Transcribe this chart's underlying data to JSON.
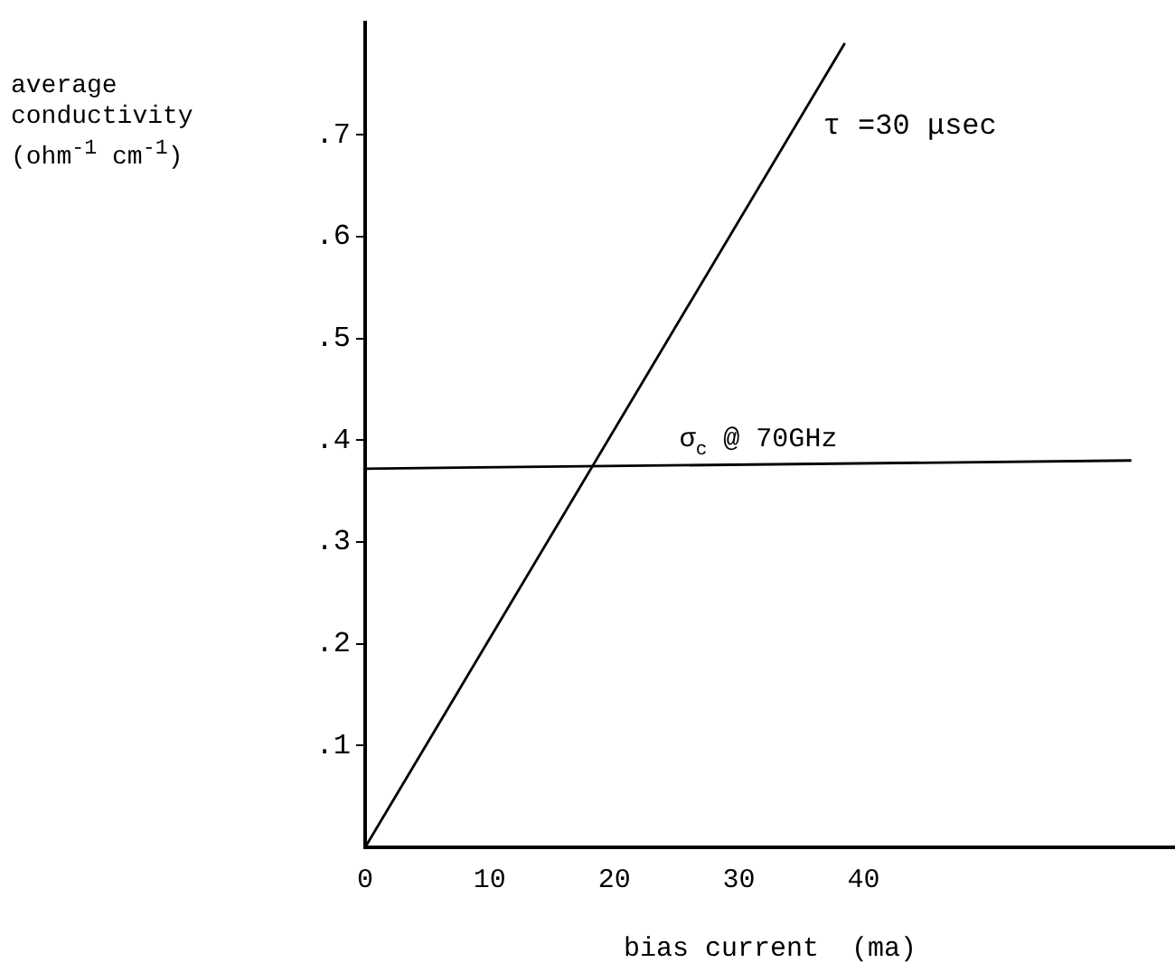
{
  "chart_data": {
    "type": "line",
    "xlabel": "bias current  (ma)",
    "ylabel": "average conductivity (ohm$^{-1}$ cm$^{-1}$)",
    "xlim": [
      0,
      65
    ],
    "xticks": [
      0,
      10,
      20,
      30,
      40
    ],
    "ylim": [
      0,
      0.81
    ],
    "yticks": [
      {
        "value": 0.1,
        "label": ".1"
      },
      {
        "value": 0.2,
        "label": ".2"
      },
      {
        "value": 0.3,
        "label": ".3"
      },
      {
        "value": 0.4,
        "label": ".4"
      },
      {
        "value": 0.5,
        "label": ".5"
      },
      {
        "value": 0.6,
        "label": ".6"
      },
      {
        "value": 0.7,
        "label": ".7"
      }
    ],
    "grid": false,
    "legend": false,
    "marker": "none",
    "line_style": "solid",
    "series": [
      {
        "name": "τ =30 μsec",
        "color": "#000000",
        "x": [
          0,
          38.5
        ],
        "values": [
          0,
          0.79
        ]
      },
      {
        "name": "σ$_{c}$ @ 70GHz",
        "color": "#000000",
        "x": [
          0,
          61.5
        ],
        "values": [
          0.372,
          0.38
        ]
      }
    ]
  }
}
